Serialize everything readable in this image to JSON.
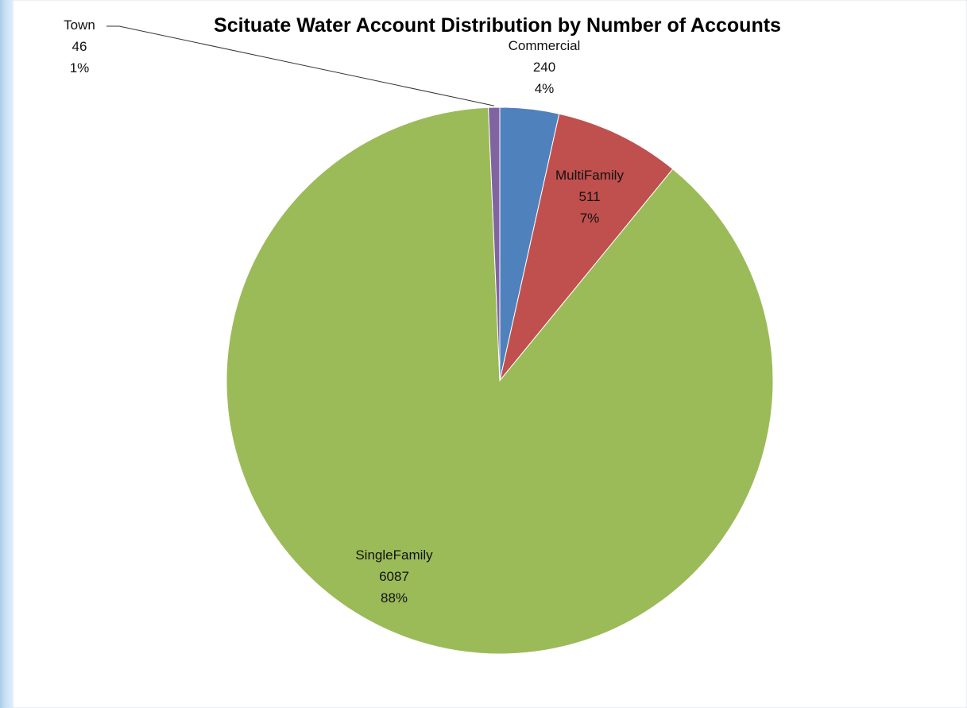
{
  "chart_data": {
    "type": "pie",
    "title": "Scituate Water Account Distribution by Number of Accounts",
    "categories": [
      "Commercial",
      "MultiFamily",
      "SingleFamily",
      "Town"
    ],
    "values": [
      240,
      511,
      6087,
      46
    ],
    "percent_labels": [
      "4%",
      "7%",
      "88%",
      "1%"
    ],
    "value_labels": [
      "240",
      "511",
      "6087",
      "46"
    ],
    "colors": [
      "#4f81bd",
      "#c0504d",
      "#9bbb59",
      "#8064a2"
    ],
    "start_angle": "12 o'clock",
    "direction": "clockwise",
    "legend": "none",
    "leader_line_categories": [
      "Town"
    ]
  }
}
